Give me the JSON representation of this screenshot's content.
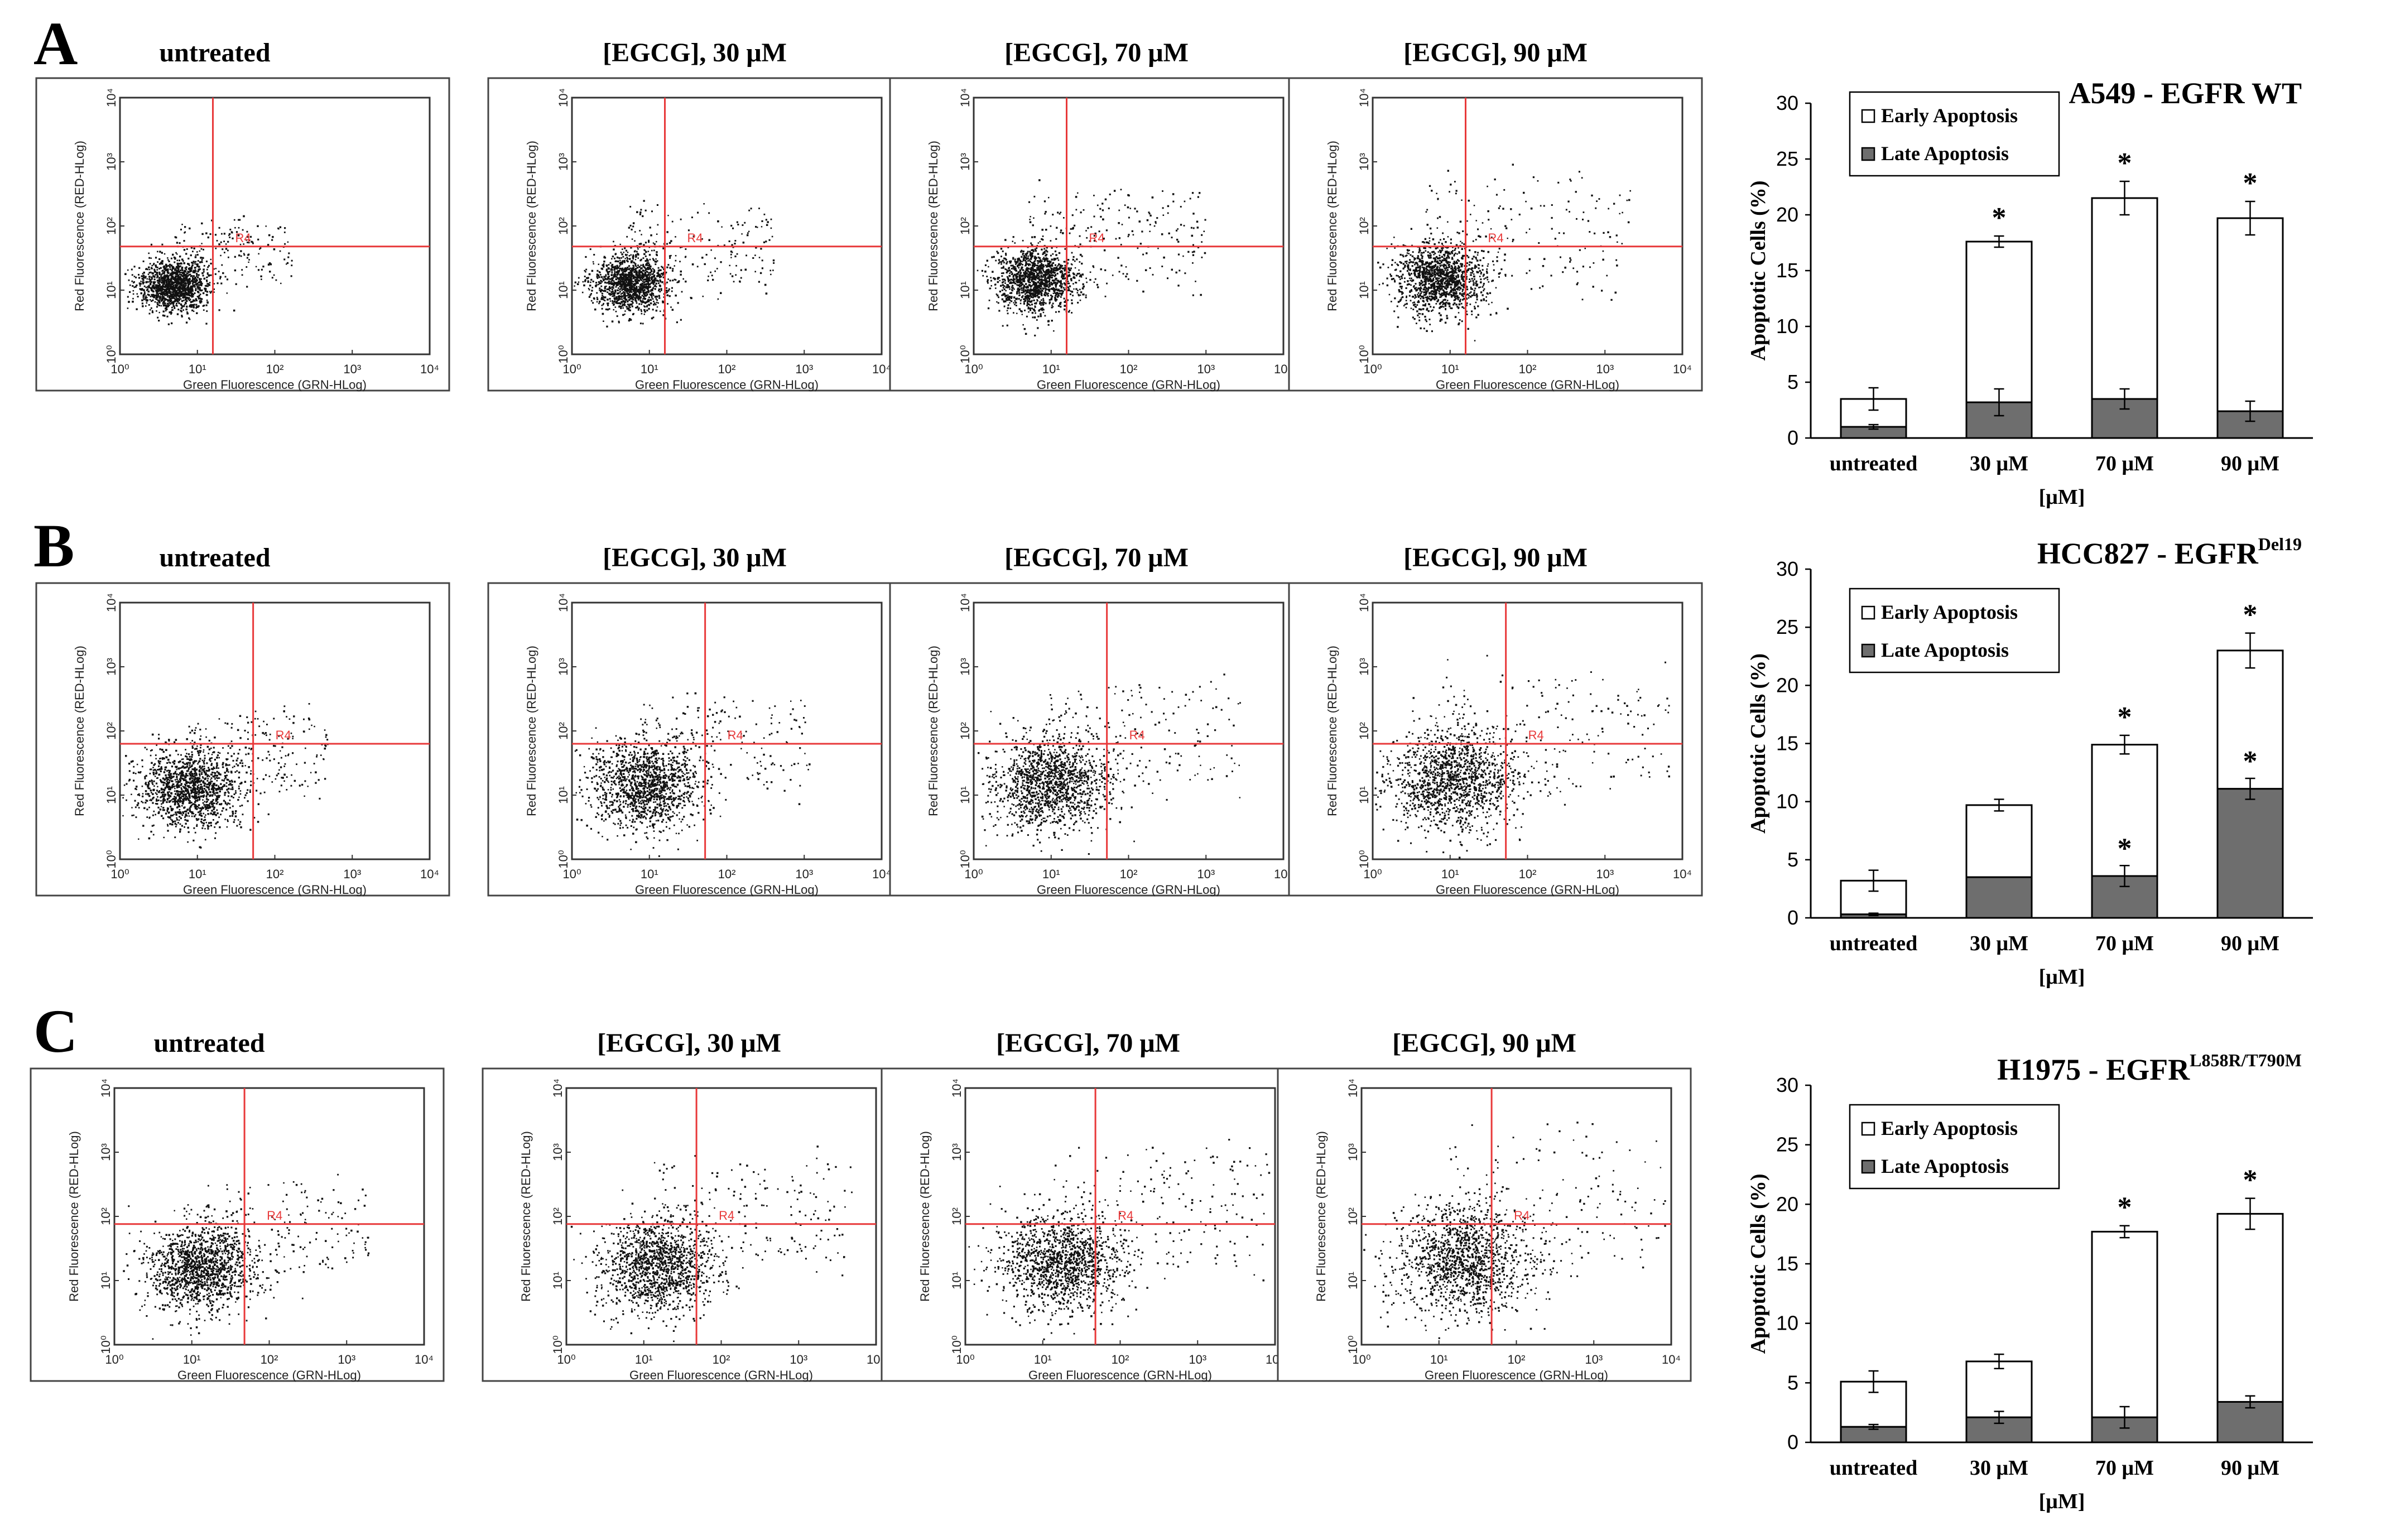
{
  "colors": {
    "quadrant_line": "#e8393a",
    "frame": "#444444",
    "dots": "#111111",
    "early_fill": "#ffffff",
    "late_fill": "#6e6e6e",
    "bar_stroke": "#000000"
  },
  "facs": {
    "ylabel": "Red Fluorescence (RED-HLog)",
    "xlabel": "Green Fluorescence (GRN-HLog)",
    "ticks": [
      "10⁰",
      "10¹",
      "10²",
      "10³",
      "10⁴"
    ],
    "gate_label": "R4",
    "titles": [
      "untreated",
      "[EGCG], 30 μM",
      "[EGCG], 70 μM",
      "[EGCG], 90 μM"
    ]
  },
  "panels": [
    {
      "letter": "A"
    },
    {
      "letter": "B"
    },
    {
      "letter": "C"
    }
  ],
  "legend": {
    "early": "Early Apoptosis",
    "late": "Late Apoptosis"
  },
  "significance_marker": "*",
  "chart_data": [
    {
      "type": "bar",
      "stacked": true,
      "title": "A549 - EGFR WT",
      "title_main": "A549 - EGFR WT",
      "title_sup": "",
      "categories": [
        "untreated",
        "30 μM",
        "70 μM",
        "90 μM"
      ],
      "xlabel": "[μM]",
      "ylabel": "Apoptotic Cells (%)",
      "ylim": [
        0,
        30
      ],
      "yticks": [
        0,
        5,
        10,
        15,
        20,
        25,
        30
      ],
      "series": [
        {
          "name": "Late Apoptosis",
          "values": [
            1.0,
            3.2,
            3.5,
            2.4
          ],
          "errors": [
            0.2,
            1.2,
            0.9,
            0.9
          ],
          "significant": [
            false,
            false,
            false,
            false
          ]
        },
        {
          "name": "Early Apoptosis",
          "values": [
            2.5,
            14.4,
            18.0,
            17.3
          ],
          "totals": [
            3.5,
            17.6,
            21.5,
            19.7
          ],
          "errors": [
            1.0,
            0.5,
            1.5,
            1.5
          ],
          "significant": [
            false,
            true,
            true,
            true
          ]
        }
      ]
    },
    {
      "type": "bar",
      "stacked": true,
      "title": "HCC827 - EGFR Del19",
      "title_main": "HCC827 - EGFR",
      "title_sup": "Del19",
      "categories": [
        "untreated",
        "30 μM",
        "70 μM",
        "90 μM"
      ],
      "xlabel": "[μM]",
      "ylabel": "Apoptotic Cells (%)",
      "ylim": [
        0,
        30
      ],
      "yticks": [
        0,
        5,
        10,
        15,
        20,
        25,
        30
      ],
      "series": [
        {
          "name": "Late Apoptosis",
          "values": [
            0.3,
            3.5,
            3.6,
            11.1
          ],
          "errors": [
            0.1,
            0.0,
            0.9,
            0.9
          ],
          "significant": [
            false,
            false,
            true,
            true
          ]
        },
        {
          "name": "Early Apoptosis",
          "values": [
            2.9,
            6.2,
            11.3,
            11.9
          ],
          "totals": [
            3.2,
            9.7,
            14.9,
            23.0
          ],
          "errors": [
            0.9,
            0.5,
            0.8,
            1.5
          ],
          "significant": [
            false,
            false,
            true,
            true
          ]
        }
      ]
    },
    {
      "type": "bar",
      "stacked": true,
      "title": "H1975 - EGFR L858R/T790M",
      "title_main": "H1975 - EGFR",
      "title_sup": "L858R/T790M",
      "categories": [
        "untreated",
        "30 μM",
        "70 μM",
        "90 μM"
      ],
      "xlabel": "[μM]",
      "ylabel": "Apoptotic Cells (%)",
      "ylim": [
        0,
        30
      ],
      "yticks": [
        0,
        5,
        10,
        15,
        20,
        25,
        30
      ],
      "series": [
        {
          "name": "Late Apoptosis",
          "values": [
            1.3,
            2.1,
            2.1,
            3.4
          ],
          "errors": [
            0.2,
            0.5,
            0.9,
            0.5
          ],
          "significant": [
            false,
            false,
            false,
            false
          ]
        },
        {
          "name": "Early Apoptosis",
          "values": [
            3.8,
            4.7,
            15.6,
            15.8
          ],
          "totals": [
            5.1,
            6.8,
            17.7,
            19.2
          ],
          "errors": [
            0.9,
            0.6,
            0.5,
            1.3
          ],
          "significant": [
            false,
            false,
            true,
            true
          ]
        }
      ]
    }
  ]
}
